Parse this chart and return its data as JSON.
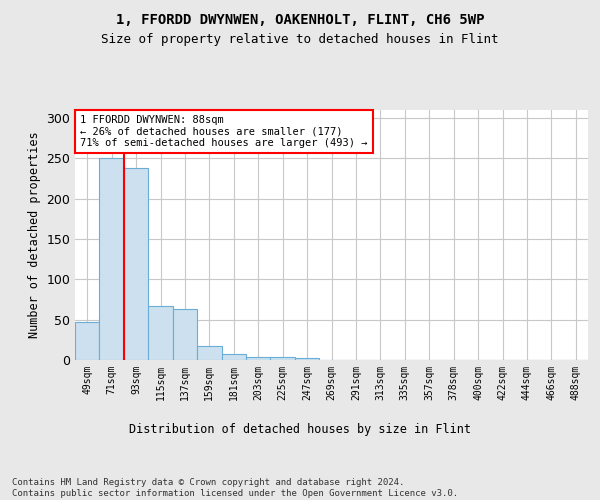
{
  "title_line1": "1, FFORDD DWYNWEN, OAKENHOLT, FLINT, CH6 5WP",
  "title_line2": "Size of property relative to detached houses in Flint",
  "xlabel": "Distribution of detached houses by size in Flint",
  "ylabel": "Number of detached properties",
  "footer": "Contains HM Land Registry data © Crown copyright and database right 2024.\nContains public sector information licensed under the Open Government Licence v3.0.",
  "bar_labels": [
    "49sqm",
    "71sqm",
    "93sqm",
    "115sqm",
    "137sqm",
    "159sqm",
    "181sqm",
    "203sqm",
    "225sqm",
    "247sqm",
    "269sqm",
    "291sqm",
    "313sqm",
    "335sqm",
    "357sqm",
    "378sqm",
    "400sqm",
    "422sqm",
    "444sqm",
    "466sqm",
    "488sqm"
  ],
  "bar_values": [
    47,
    251,
    238,
    67,
    63,
    17,
    8,
    4,
    4,
    3,
    0,
    0,
    0,
    0,
    0,
    0,
    0,
    0,
    0,
    0,
    0
  ],
  "bar_color": "#cce0f0",
  "bar_edge_color": "#6aadd5",
  "property_line_bin_index": 1.5,
  "annotation_text": "1 FFORDD DWYNWEN: 88sqm\n← 26% of detached houses are smaller (177)\n71% of semi-detached houses are larger (493) →",
  "annotation_box_color": "white",
  "annotation_box_edge_color": "red",
  "red_line_color": "red",
  "ylim": [
    0,
    310
  ],
  "yticks": [
    0,
    50,
    100,
    150,
    200,
    250,
    300
  ],
  "grid_color": "#c8c8c8",
  "background_color": "white",
  "fig_bg_color": "#e8e8e8"
}
